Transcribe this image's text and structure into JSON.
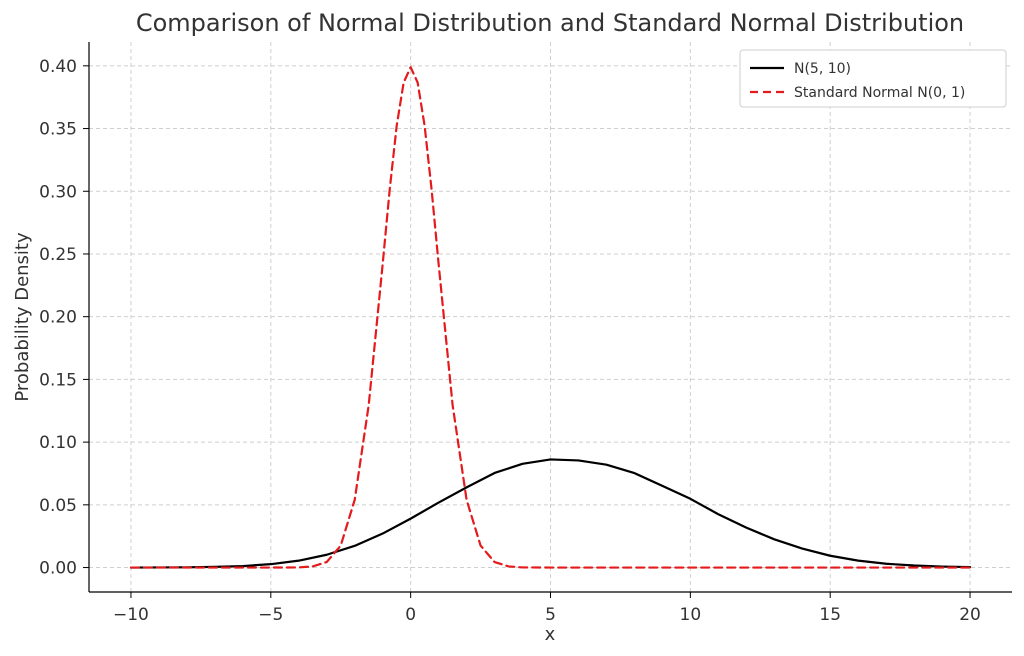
{
  "chart_data": {
    "type": "line",
    "title": "Comparison of Normal Distribution and Standard Normal Distribution",
    "xlabel": "x",
    "ylabel": "Probability Density",
    "xlim": [
      -11.5,
      21.5
    ],
    "ylim": [
      -0.0195,
      0.419
    ],
    "x_ticks": [
      -10,
      -5,
      0,
      5,
      10,
      15,
      20
    ],
    "x_tick_labels": [
      "−10",
      "−5",
      "0",
      "5",
      "10",
      "15",
      "20"
    ],
    "y_ticks": [
      0,
      0.05,
      0.1,
      0.15,
      0.2,
      0.25,
      0.3,
      0.35,
      0.4
    ],
    "y_tick_labels": [
      "0.00",
      "0.05",
      "0.10",
      "0.15",
      "0.20",
      "0.25",
      "0.30",
      "0.35",
      "0.40"
    ],
    "grid": true,
    "legend_position": "top-right",
    "series": [
      {
        "name": "N(5, 10)",
        "color": "#000000",
        "style": "solid",
        "x": [
          -10,
          -9,
          -8,
          -7,
          -6,
          -5,
          -4,
          -3,
          -2,
          -1,
          0,
          1,
          2,
          3,
          4,
          5,
          6,
          7,
          8,
          9,
          10,
          11,
          12,
          13,
          14,
          15,
          16,
          17,
          18,
          19,
          20
        ],
        "y": [
          0.0,
          0.0001,
          0.0002,
          0.0005,
          0.0012,
          0.0027,
          0.0055,
          0.0102,
          0.0173,
          0.0271,
          0.039,
          0.0518,
          0.0639,
          0.0754,
          0.0827,
          0.0862,
          0.0854,
          0.082,
          0.0753,
          0.0651,
          0.0548,
          0.0425,
          0.0318,
          0.0225,
          0.0151,
          0.0094,
          0.0055,
          0.003,
          0.0016,
          0.0008,
          0.0004
        ]
      },
      {
        "name": "Standard Normal N(0, 1)",
        "color": "#e41a1c",
        "style": "dashed",
        "x": [
          -10,
          -5,
          -4,
          -3.5,
          -3,
          -2.5,
          -2,
          -1.5,
          -1,
          -0.75,
          -0.5,
          -0.25,
          0,
          0.25,
          0.5,
          0.75,
          1,
          1.5,
          2,
          2.5,
          3,
          3.5,
          4,
          5,
          10,
          15,
          20
        ],
        "y": [
          0.0,
          0.0,
          0.0001,
          0.0009,
          0.0044,
          0.0175,
          0.054,
          0.1295,
          0.242,
          0.3011,
          0.3521,
          0.3867,
          0.3989,
          0.3867,
          0.3521,
          0.3011,
          0.242,
          0.1295,
          0.054,
          0.0175,
          0.0044,
          0.0009,
          0.0001,
          0.0,
          0.0,
          0.0,
          0.0
        ]
      }
    ]
  }
}
